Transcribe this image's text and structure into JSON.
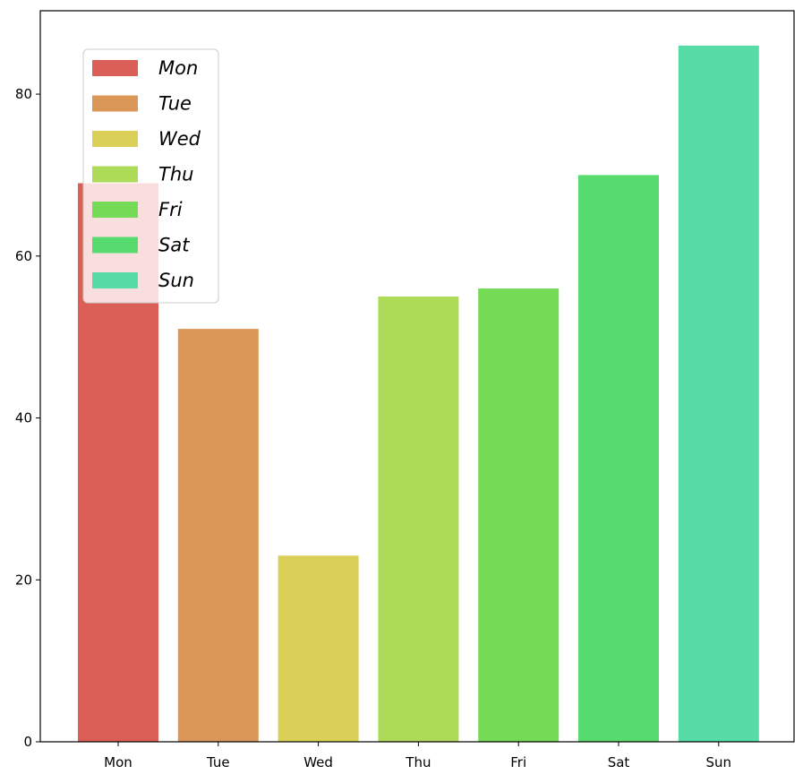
{
  "chart_data": {
    "type": "bar",
    "title": "",
    "xlabel": "",
    "ylabel": "",
    "categories": [
      "Mon",
      "Tue",
      "Wed",
      "Thu",
      "Fri",
      "Sat",
      "Sun"
    ],
    "values": [
      69,
      51,
      23,
      55,
      56,
      70,
      86
    ],
    "colors": [
      "#db5f57",
      "#db9757",
      "#dbd057",
      "#addb57",
      "#75db57",
      "#57db6e",
      "#57dba7"
    ],
    "ylim": [
      0,
      90.3
    ],
    "yticks": [
      0,
      20,
      40,
      60,
      80
    ],
    "grid": false,
    "legend": {
      "placement": "upper-left",
      "entries": [
        "Mon",
        "Tue",
        "Wed",
        "Thu",
        "Fri",
        "Sat",
        "Sun"
      ]
    }
  }
}
